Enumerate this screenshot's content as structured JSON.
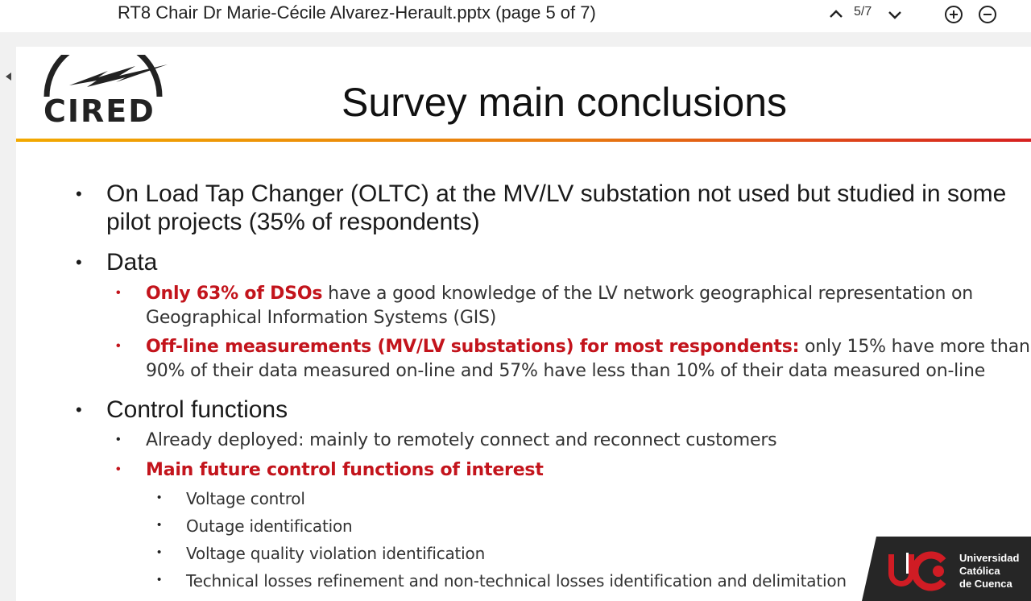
{
  "viewer": {
    "doc_title": "RT8 Chair Dr Marie-Cécile Alvarez-Herault.pptx (page 5 of 7)",
    "page_indicator": "5/7",
    "icons": [
      "chevron-up-icon",
      "chevron-down-icon",
      "zoom-in-icon",
      "zoom-out-icon",
      "collapse-left-icon"
    ]
  },
  "slide": {
    "logo_text": "CIRED",
    "title": "Survey main conclusions",
    "bullets": {
      "oltc": "On Load Tap Changer (OLTC) at the MV/LV substation not used but studied in some pilot projects (35% of respondents)",
      "data": "Data",
      "data_1_red": "Only 63% of DSOs",
      "data_1_rest": " have a good knowledge of the LV network geographical representation on Geographical Information Systems (GIS)",
      "data_2_red": "Off-line measurements (MV/LV substations) for most respondents:",
      "data_2_rest": " only 15% have more than 90% of their data measured on-line and 57% have less than 10% of their data measured on-line",
      "control": "Control functions",
      "control_1": "Already deployed: mainly to remotely connect and reconnect customers",
      "control_2_red": "Main future control functions of interest",
      "sub": [
        "Voltage control",
        "Outage identification",
        "Voltage quality violation identification",
        "Technical losses refinement and non-technical losses identification and delimitation"
      ]
    }
  },
  "watermark": {
    "line1": "Universidad",
    "line2": "Católica",
    "line3": "de Cuenca"
  },
  "colors": {
    "accent_red": "#c3141c",
    "rule_start": "#f2a900",
    "rule_end": "#d62020",
    "badge_bg": "#262626"
  }
}
